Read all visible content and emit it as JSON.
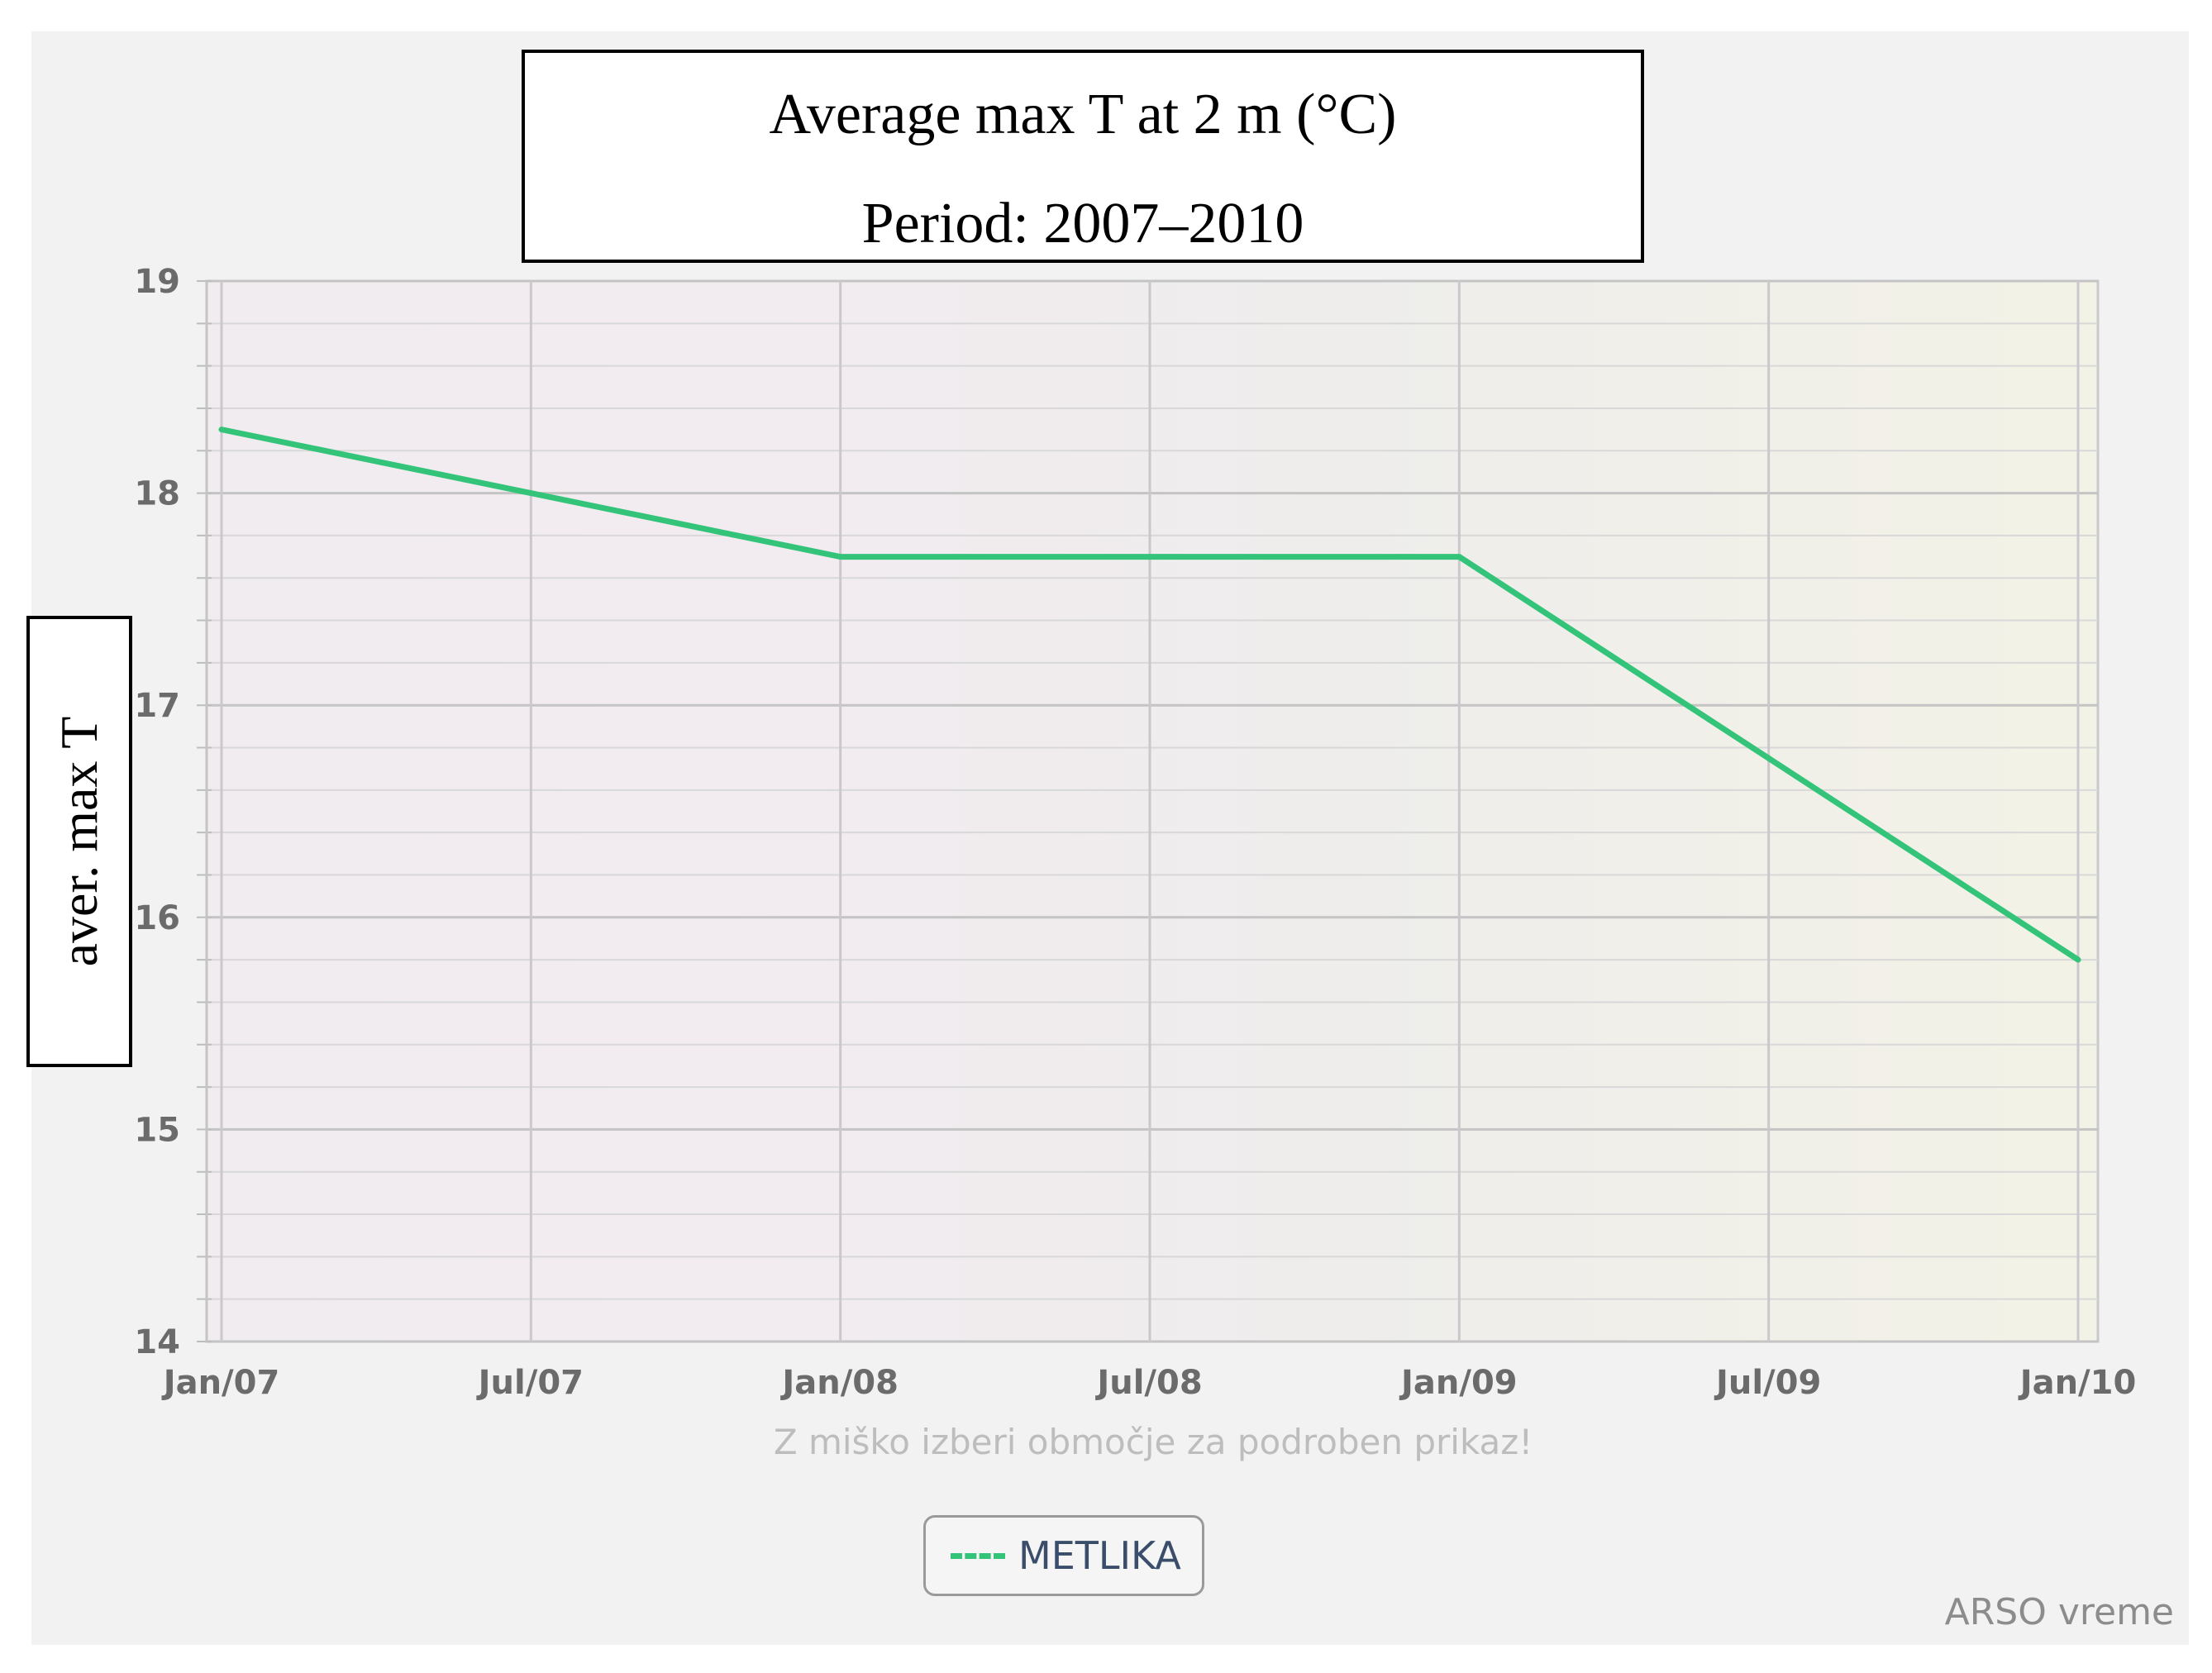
{
  "chart_data": {
    "type": "line",
    "title": "Average max T at 2 m (°C)",
    "subtitle": "Period: 2007–2010",
    "ylabel": "aver. max T",
    "xlabel": "",
    "ylim": [
      14,
      19
    ],
    "y_ticks": [
      14,
      15,
      16,
      17,
      18,
      19
    ],
    "x_ticks": [
      {
        "label": "Jan/07",
        "t": 0
      },
      {
        "label": "Jul/07",
        "t": 6
      },
      {
        "label": "Jan/08",
        "t": 12
      },
      {
        "label": "Jul/08",
        "t": 18
      },
      {
        "label": "Jan/09",
        "t": 24
      },
      {
        "label": "Jul/09",
        "t": 30
      },
      {
        "label": "Jan/10",
        "t": 36
      }
    ],
    "series": [
      {
        "name": "METLIKA",
        "color": "#33c47a",
        "x": [
          "Jan/07",
          "Jan/08",
          "Jan/09",
          "Jan/10"
        ],
        "x_months": [
          0,
          12,
          24,
          36
        ],
        "values": [
          18.3,
          17.7,
          17.7,
          15.8
        ]
      }
    ],
    "legend": "bottom-center",
    "grid": true
  },
  "hint_text": "Z miško izberi območje za podroben prikaz!",
  "credit": "ARSO vreme"
}
